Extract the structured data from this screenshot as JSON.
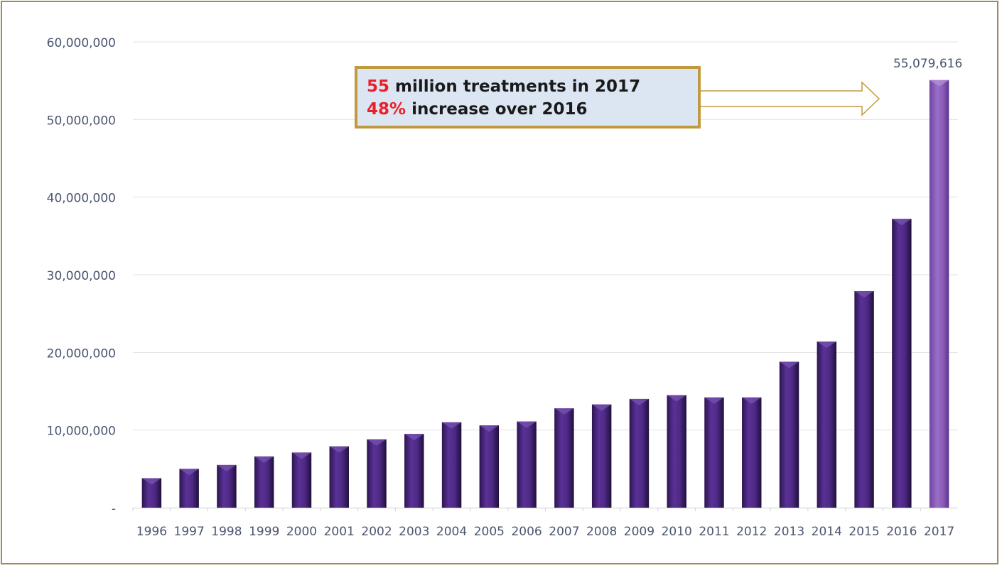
{
  "chart_data": {
    "type": "bar",
    "title": "",
    "xlabel": "",
    "ylabel": "",
    "ylim": [
      0,
      60000000
    ],
    "yticks": [
      0,
      10000000,
      20000000,
      30000000,
      40000000,
      50000000,
      60000000
    ],
    "ytick_labels": [
      "-",
      "10,000,000",
      "20,000,000",
      "30,000,000",
      "40,000,000",
      "50,000,000",
      "60,000,000"
    ],
    "grid": true,
    "categories": [
      "1996",
      "1997",
      "1998",
      "1999",
      "2000",
      "2001",
      "2002",
      "2003",
      "2004",
      "2005",
      "2006",
      "2007",
      "2008",
      "2009",
      "2010",
      "2011",
      "2012",
      "2013",
      "2014",
      "2015",
      "2016",
      "2017"
    ],
    "values": [
      3800000,
      5000000,
      5500000,
      6600000,
      7100000,
      7900000,
      8800000,
      9500000,
      11000000,
      10600000,
      11100000,
      12800000,
      13300000,
      14000000,
      14500000,
      14200000,
      14200000,
      18800000,
      21400000,
      27900000,
      37200000,
      55079616
    ],
    "data_labels": [
      {
        "category": "2017",
        "text": "55,079,616"
      }
    ],
    "bar_color": "#4e2a86",
    "highlight_color": "#8a5bb8",
    "annotation": {
      "line1_highlight": "55",
      "line1_text": " million treatments in 2017",
      "line2_highlight": "48%",
      "line2_text": " increase over 2016",
      "highlight_color": "#e8202a",
      "box_fill": "#dce6f3",
      "box_border": "#c19a3f"
    }
  }
}
